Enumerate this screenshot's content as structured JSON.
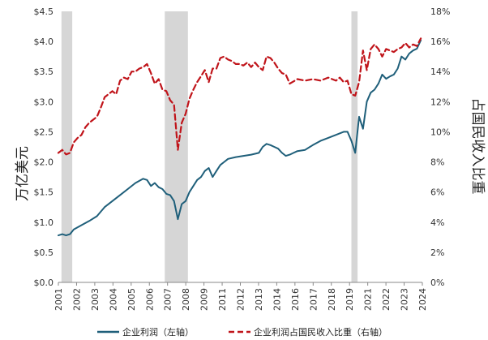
{
  "chart_data": {
    "type": "line",
    "title": "",
    "ylabel_left": "万亿美元",
    "ylabel_right": "占国民收入比重",
    "x_range": [
      2001.0,
      2024.6
    ],
    "left_ylim": [
      0,
      4.5
    ],
    "right_ylim": [
      0,
      18
    ],
    "left_ticks": [
      "$0.0",
      "$0.5",
      "$1.0",
      "$1.5",
      "$2.0",
      "$2.5",
      "$3.0",
      "$3.5",
      "$4.0",
      "$4.5"
    ],
    "right_ticks": [
      "0%",
      "2%",
      "4%",
      "6%",
      "8%",
      "10%",
      "12%",
      "14%",
      "16%",
      "18%"
    ],
    "x_ticks": [
      "2001",
      "2002",
      "2003",
      "2004",
      "2005",
      "2006",
      "2007",
      "2008",
      "2009",
      "2011",
      "2012",
      "2013",
      "2014",
      "2016",
      "2017",
      "2018",
      "2019",
      "2021",
      "2022",
      "2023",
      "2024"
    ],
    "recessions": [
      [
        2001.2,
        2001.9
      ],
      [
        2007.9,
        2009.4
      ],
      [
        2020.0,
        2020.4
      ]
    ],
    "series": [
      {
        "name": "企业利润（左轴）",
        "axis": "left",
        "color": "#1f5f7a",
        "style": "solid",
        "x": [
          2001.0,
          2001.25,
          2001.5,
          2001.75,
          2002.0,
          2002.5,
          2003.0,
          2003.5,
          2004.0,
          2004.5,
          2005.0,
          2005.5,
          2006.0,
          2006.5,
          2006.75,
          2007.0,
          2007.25,
          2007.5,
          2007.75,
          2008.0,
          2008.25,
          2008.5,
          2008.75,
          2009.0,
          2009.25,
          2009.5,
          2009.75,
          2010.0,
          2010.25,
          2010.5,
          2010.75,
          2011.0,
          2011.25,
          2011.5,
          2011.75,
          2012.0,
          2012.5,
          2013.0,
          2013.5,
          2014.0,
          2014.25,
          2014.5,
          2014.75,
          2015.0,
          2015.25,
          2015.5,
          2015.75,
          2016.0,
          2016.25,
          2016.5,
          2017.0,
          2017.5,
          2018.0,
          2018.5,
          2019.0,
          2019.5,
          2019.75,
          2020.0,
          2020.25,
          2020.5,
          2020.75,
          2021.0,
          2021.25,
          2021.5,
          2021.75,
          2022.0,
          2022.25,
          2022.5,
          2022.75,
          2023.0,
          2023.25,
          2023.5,
          2023.75,
          2024.0,
          2024.25,
          2024.5
        ],
        "values": [
          0.78,
          0.8,
          0.78,
          0.8,
          0.88,
          0.95,
          1.02,
          1.1,
          1.25,
          1.35,
          1.45,
          1.55,
          1.65,
          1.72,
          1.7,
          1.6,
          1.65,
          1.58,
          1.55,
          1.47,
          1.45,
          1.35,
          1.05,
          1.3,
          1.35,
          1.5,
          1.6,
          1.7,
          1.75,
          1.85,
          1.9,
          1.75,
          1.85,
          1.95,
          2.0,
          2.05,
          2.08,
          2.1,
          2.12,
          2.15,
          2.25,
          2.3,
          2.28,
          2.25,
          2.22,
          2.15,
          2.1,
          2.12,
          2.15,
          2.18,
          2.2,
          2.28,
          2.35,
          2.4,
          2.45,
          2.5,
          2.5,
          2.35,
          2.15,
          2.75,
          2.55,
          3.0,
          3.15,
          3.2,
          3.3,
          3.45,
          3.38,
          3.42,
          3.45,
          3.55,
          3.75,
          3.7,
          3.8,
          3.85,
          3.88,
          4.02
        ]
      },
      {
        "name": "企业利润占国民收入比重（右轴）",
        "axis": "right",
        "color": "#c0141a",
        "style": "dashed",
        "x": [
          2001.0,
          2001.25,
          2001.5,
          2001.75,
          2002.0,
          2002.25,
          2002.5,
          2002.75,
          2003.0,
          2003.25,
          2003.5,
          2003.75,
          2004.0,
          2004.25,
          2004.5,
          2004.75,
          2005.0,
          2005.25,
          2005.5,
          2005.75,
          2006.0,
          2006.25,
          2006.5,
          2006.75,
          2007.0,
          2007.25,
          2007.5,
          2007.75,
          2008.0,
          2008.25,
          2008.5,
          2008.75,
          2009.0,
          2009.25,
          2009.5,
          2009.75,
          2010.0,
          2010.25,
          2010.5,
          2010.75,
          2011.0,
          2011.25,
          2011.5,
          2011.75,
          2012.0,
          2012.25,
          2012.5,
          2012.75,
          2013.0,
          2013.25,
          2013.5,
          2013.75,
          2014.0,
          2014.25,
          2014.5,
          2014.75,
          2015.0,
          2015.25,
          2015.5,
          2015.75,
          2016.0,
          2016.5,
          2017.0,
          2017.5,
          2018.0,
          2018.5,
          2019.0,
          2019.25,
          2019.5,
          2019.75,
          2020.0,
          2020.25,
          2020.5,
          2020.75,
          2021.0,
          2021.25,
          2021.5,
          2021.75,
          2022.0,
          2022.25,
          2022.5,
          2022.75,
          2023.0,
          2023.25,
          2023.5,
          2023.75,
          2024.0,
          2024.25,
          2024.5
        ],
        "values": [
          8.6,
          8.8,
          8.5,
          8.6,
          9.3,
          9.6,
          9.8,
          10.3,
          10.6,
          10.8,
          11.0,
          11.6,
          12.3,
          12.5,
          12.7,
          12.5,
          13.4,
          13.6,
          13.5,
          14.0,
          14.0,
          14.2,
          14.3,
          14.5,
          13.9,
          13.2,
          13.5,
          12.8,
          12.7,
          12.1,
          11.8,
          8.8,
          10.6,
          11.2,
          12.2,
          12.8,
          13.3,
          13.7,
          14.1,
          13.3,
          14.2,
          14.2,
          14.9,
          15.0,
          14.8,
          14.7,
          14.5,
          14.5,
          14.4,
          14.6,
          14.3,
          14.6,
          14.3,
          14.1,
          15.0,
          14.9,
          14.6,
          14.2,
          13.9,
          13.8,
          13.2,
          13.5,
          13.4,
          13.5,
          13.4,
          13.6,
          13.4,
          13.6,
          13.3,
          13.4,
          12.5,
          12.4,
          13.3,
          15.4,
          14.1,
          15.5,
          15.8,
          15.5,
          15.0,
          15.5,
          15.4,
          15.3,
          15.5,
          15.6,
          15.9,
          15.6,
          15.8,
          15.7,
          16.2
        ]
      }
    ],
    "legend_position": "bottom"
  }
}
